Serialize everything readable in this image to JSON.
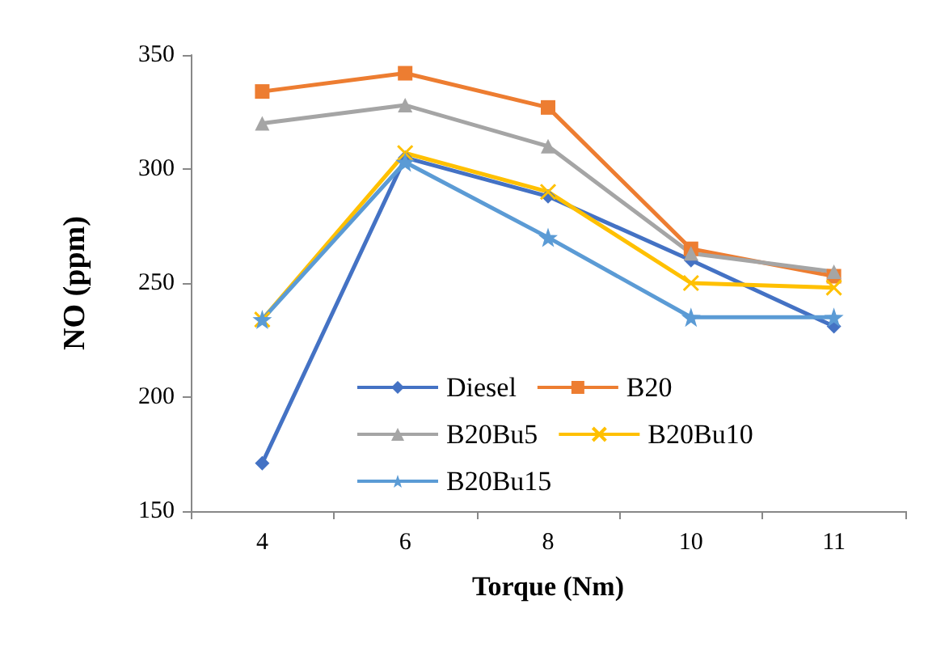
{
  "chart_data": {
    "type": "line",
    "xlabel": "Torque (Nm)",
    "ylabel": "NO (ppm)",
    "categories": [
      "4",
      "6",
      "8",
      "10",
      "11"
    ],
    "ylim": [
      150,
      350
    ],
    "yticks": [
      150,
      200,
      250,
      300,
      350
    ],
    "grid": false,
    "legend": "bottom",
    "series": [
      {
        "name": "Diesel",
        "color": "#4472c4",
        "marker": "diamond",
        "values": [
          171,
          305,
          288,
          260,
          231
        ]
      },
      {
        "name": "B20",
        "color": "#ed7d31",
        "marker": "square",
        "values": [
          334,
          342,
          327,
          265,
          253
        ]
      },
      {
        "name": "B20Bu5",
        "color": "#a5a5a5",
        "marker": "triangle",
        "values": [
          320,
          328,
          310,
          263,
          255
        ]
      },
      {
        "name": "B20Bu10",
        "color": "#ffc000",
        "marker": "cross",
        "values": [
          234,
          307,
          290,
          250,
          248
        ]
      },
      {
        "name": "B20Bu15",
        "color": "#5b9bd5",
        "marker": "star",
        "values": [
          234,
          303,
          270,
          235,
          235
        ]
      }
    ]
  }
}
